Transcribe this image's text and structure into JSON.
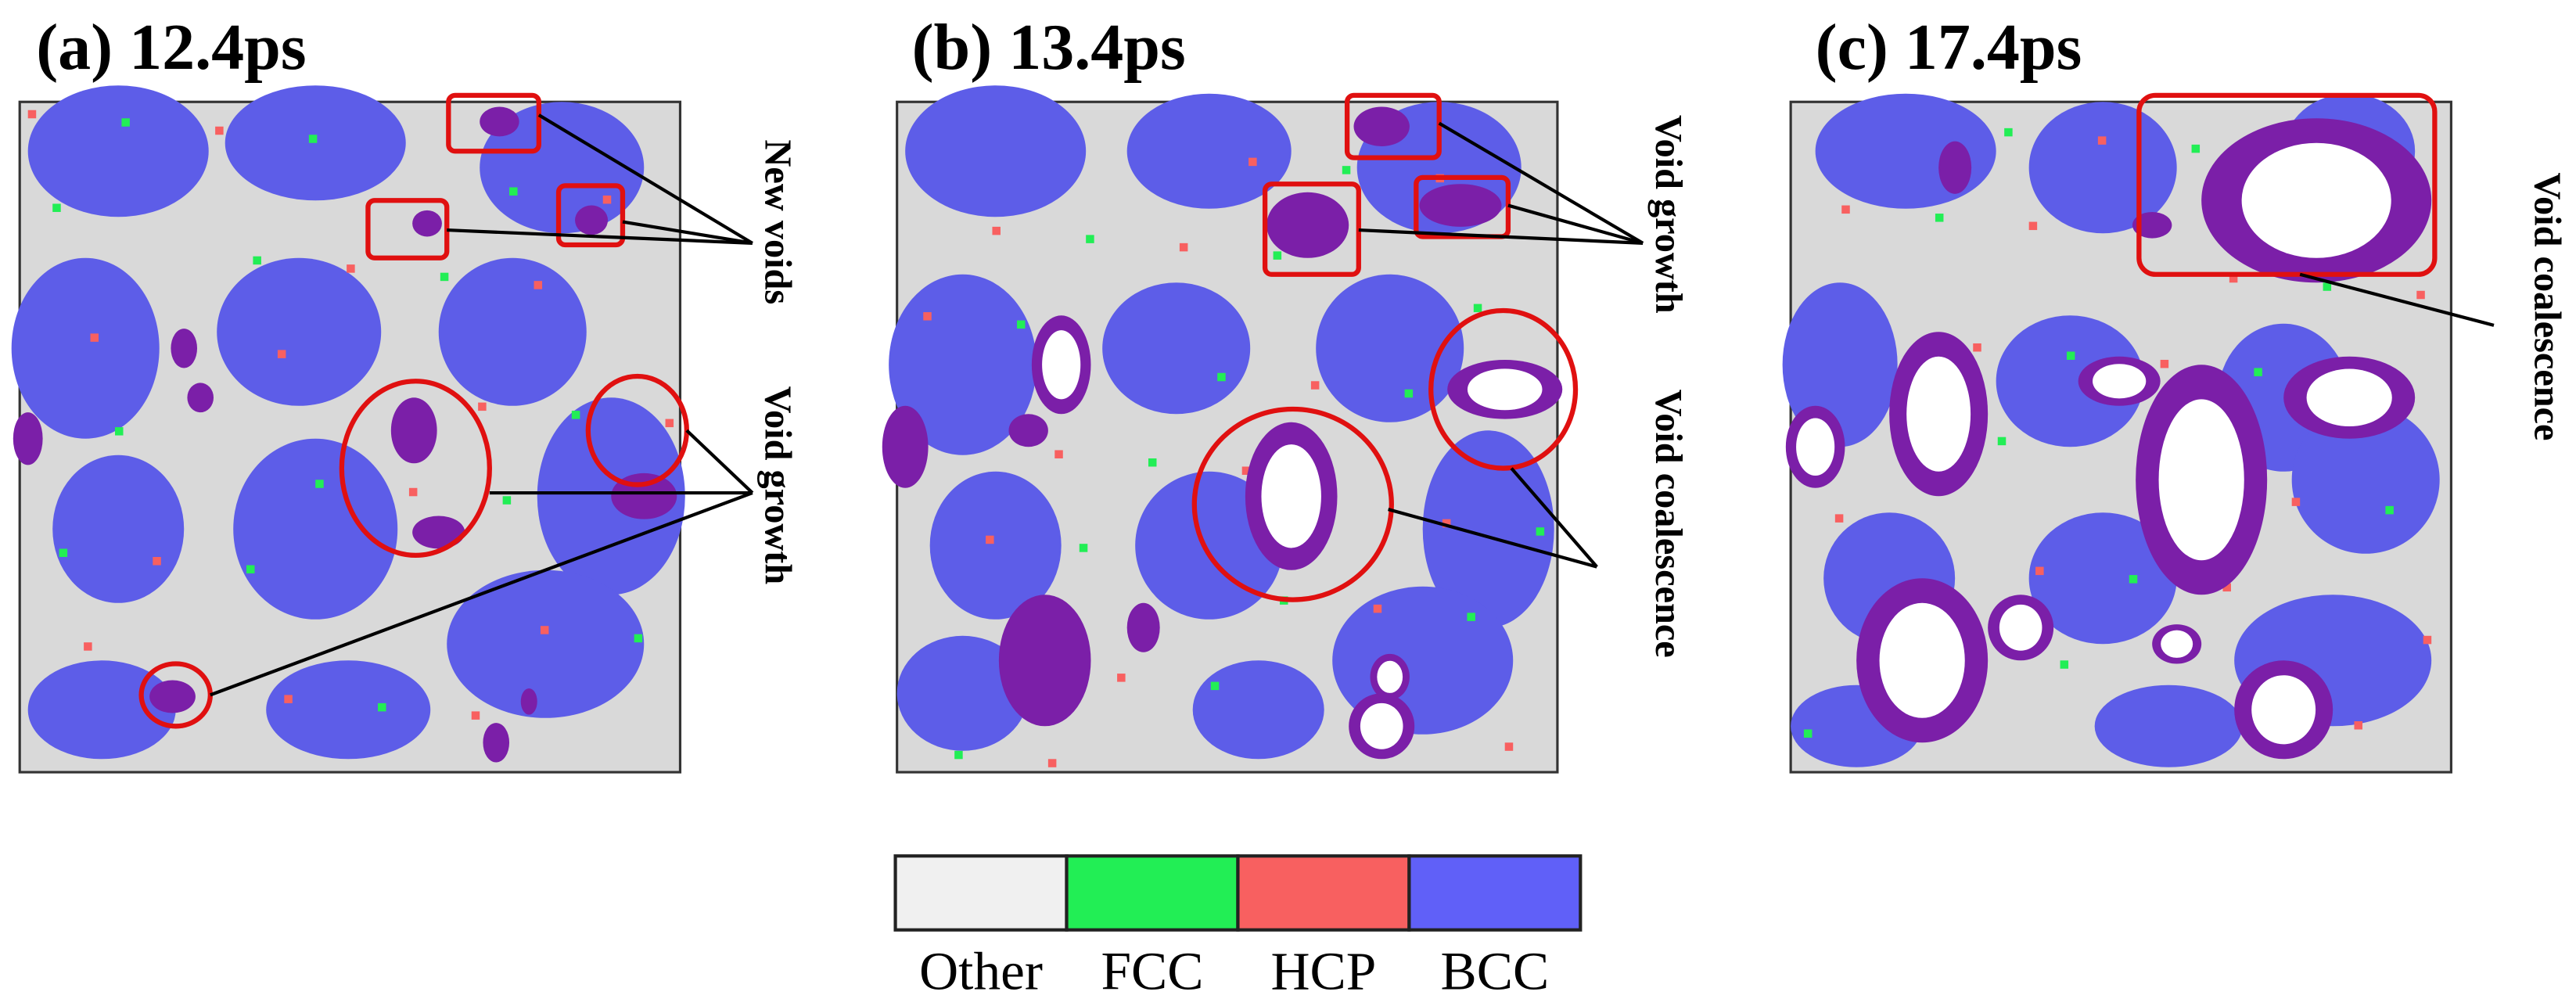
{
  "panels": [
    {
      "label": "(a) 12.4ps",
      "annotations": [
        "New voids",
        "Void growth"
      ]
    },
    {
      "label": "(b) 13.4ps",
      "annotations": [
        "Void growth",
        "Void coalescence"
      ]
    },
    {
      "label": "(c) 17.4ps",
      "annotations": [
        "Void coalescence"
      ]
    }
  ],
  "legend": [
    {
      "label": "Other",
      "color": "#f0f0f0"
    },
    {
      "label": "FCC",
      "color": "#22ee55"
    },
    {
      "label": "HCP",
      "color": "#f86060"
    },
    {
      "label": "BCC",
      "color": "#6060f8"
    }
  ]
}
